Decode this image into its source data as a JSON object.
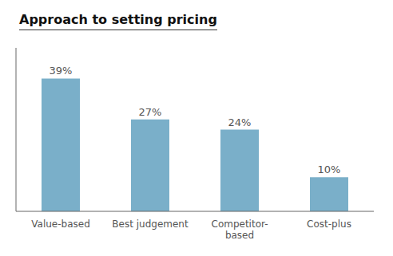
{
  "chart_data": {
    "type": "bar",
    "title": "Approach to setting pricing",
    "categories": [
      "Value-based",
      "Best judgement",
      "Competitor-\nbased",
      "Cost-plus"
    ],
    "values": [
      39,
      27,
      24,
      10
    ],
    "value_labels": [
      "39%",
      "27%",
      "24%",
      "10%"
    ],
    "data_labels": true,
    "color": "#7aafc9",
    "ylim": [
      0,
      48
    ],
    "grid": false,
    "tick_labels": "x"
  }
}
